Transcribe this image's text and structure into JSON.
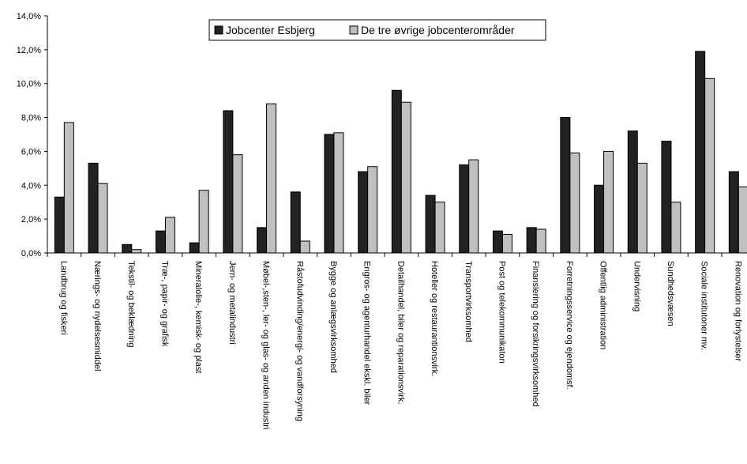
{
  "chart_data": {
    "type": "bar",
    "ylim": [
      0,
      14
    ],
    "y_tick_step": 2,
    "y_tick_labels": [
      "0,0%",
      "2,0%",
      "4,0%",
      "6,0%",
      "8,0%",
      "10,0%",
      "12,0%",
      "14,0%"
    ],
    "grid": false,
    "legend_position": "top-center",
    "categories": [
      "Landbrug og fiskeri",
      "Nærings- og nydelsesmiddel",
      "Tekstil- og beklædning",
      "Træ-, papir- og grafisk",
      "Mineralolie-, kemisk- og plast",
      "Jern- og metalindustri",
      "Møbel-,sten-, ler- og glas- og anden industri",
      "Råstofudvinding/energi- og vandforsyning",
      "Bygge og anlægsvirksomhed",
      "Engros- og agenturhandel ekskl. biler",
      "Detailhandel, biler og reparationsvirk.",
      "Hoteller og restaurantionsvirk.",
      "Transportvirksomhed",
      "Post og telekommunikaton",
      "Finansiering og forsikringsvirksomhed",
      "Forretningsservice og ejendomsf.",
      "Offentlig administration",
      "Undervisning",
      "Sundhedsvæsen",
      "Sociale institutoner mv.",
      "Renovation og forlystelser"
    ],
    "series": [
      {
        "name": "Jobcenter Esbjerg",
        "color": "#222222",
        "values": [
          3.3,
          5.3,
          0.5,
          1.3,
          0.6,
          8.4,
          1.5,
          3.6,
          7.0,
          4.8,
          9.6,
          3.4,
          5.2,
          1.3,
          1.5,
          8.0,
          4.0,
          7.2,
          6.6,
          11.9,
          4.8
        ]
      },
      {
        "name": "De tre øvrige jobcenterområder",
        "color": "#c0c0c0",
        "values": [
          7.7,
          4.1,
          0.2,
          2.1,
          3.7,
          5.8,
          8.8,
          0.7,
          7.1,
          5.1,
          8.9,
          3.0,
          5.5,
          1.1,
          1.4,
          5.9,
          6.0,
          5.3,
          3.0,
          10.3,
          3.9
        ]
      }
    ]
  }
}
